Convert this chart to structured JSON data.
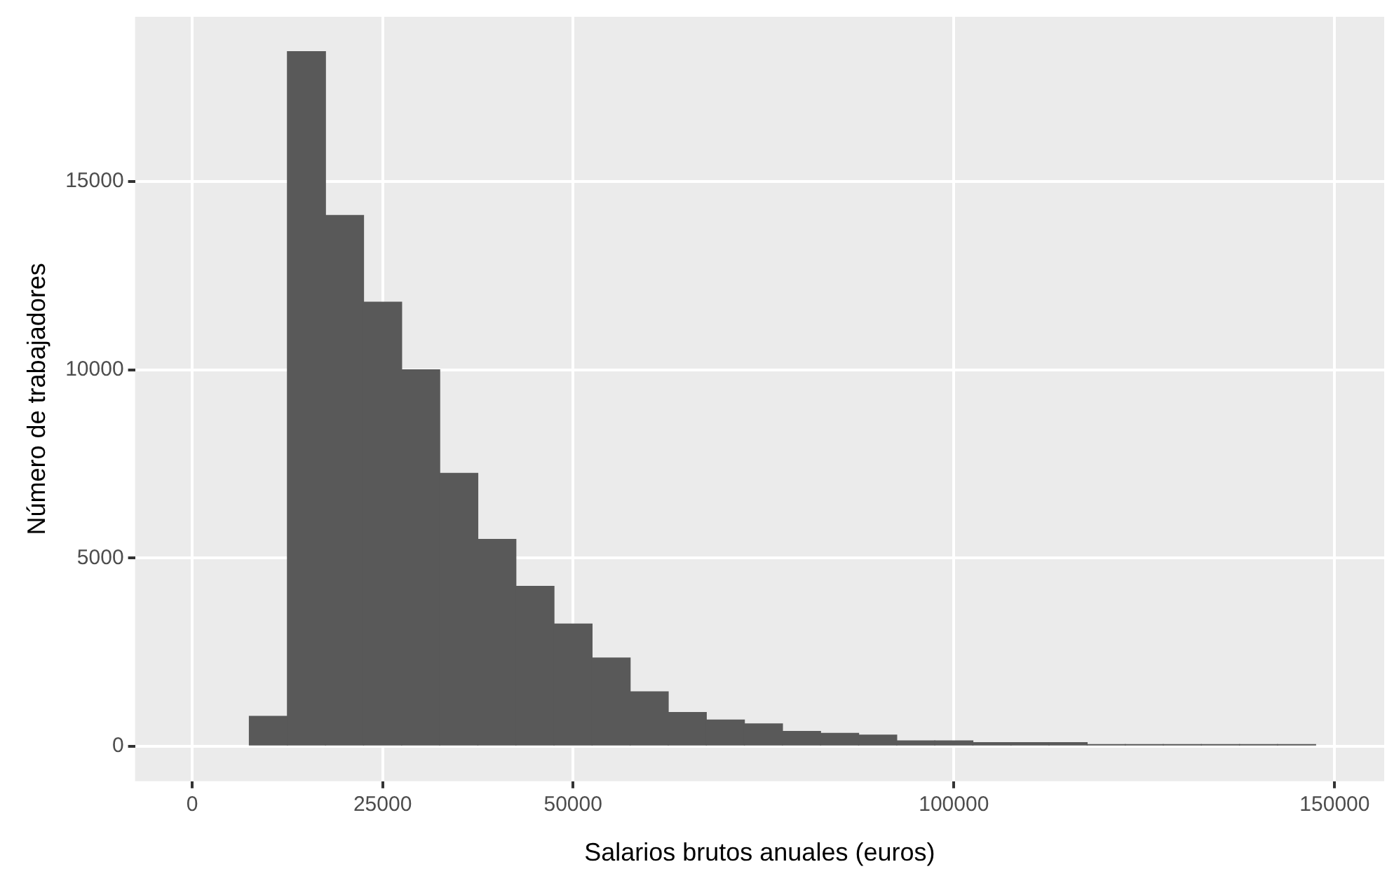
{
  "chart_data": {
    "type": "histogram",
    "xlabel": "Salarios brutos anuales (euros)",
    "ylabel": "Número de trabajadores",
    "bins": [
      7500,
      12500,
      17500,
      22500,
      27500,
      32500,
      37500,
      42500,
      47500,
      52500,
      57500,
      62500,
      67500,
      72500,
      77500,
      82500,
      87500,
      92500,
      97500,
      102500,
      107500,
      112500,
      117500,
      122500,
      127500,
      132500,
      137500,
      142500,
      147500
    ],
    "values": [
      800,
      18450,
      14100,
      11800,
      10000,
      7250,
      5500,
      4250,
      3250,
      2350,
      1450,
      900,
      700,
      600,
      400,
      350,
      300,
      150,
      150,
      100,
      100,
      100,
      50,
      50,
      50,
      50,
      50,
      50
    ],
    "color": "#595959",
    "xlim": [
      -7500,
      156500
    ],
    "xticks": [
      0,
      25000,
      50000,
      100000,
      150000
    ],
    "ylim": [
      -925,
      19375
    ],
    "yticks": [
      0,
      5000,
      10000,
      15000
    ],
    "grid": true
  }
}
